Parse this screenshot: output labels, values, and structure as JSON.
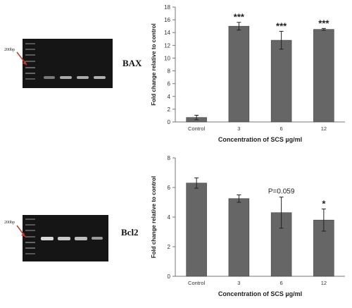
{
  "figure_panels": [
    {
      "gene": "BAX",
      "marker_label": "200bp",
      "gel_lanes": 5
    },
    {
      "gene": "Bcl2",
      "marker_label": "200bp",
      "gel_lanes": 5
    }
  ],
  "colors": {
    "bar": "#666666",
    "bar_edge": "#444444",
    "axis": "#777777",
    "gel_bg": "#151515",
    "band": "#d8d8d8",
    "arrow": "#c0392b"
  },
  "chart_data": [
    {
      "type": "bar",
      "title": "",
      "categories": [
        "Control",
        "3",
        "6",
        "12"
      ],
      "values": [
        0.7,
        15.0,
        12.8,
        14.5
      ],
      "errors": [
        0.35,
        0.6,
        1.4,
        0.15
      ],
      "annotations": [
        "",
        "***",
        "***",
        "***"
      ],
      "xlabel": "Concentration of SCS µg/ml",
      "ylabel": "Fold change relative to control",
      "ylim": [
        0,
        18
      ],
      "yticks": [
        0,
        2,
        4,
        6,
        8,
        10,
        12,
        14,
        16,
        18
      ],
      "grid": false
    },
    {
      "type": "bar",
      "title": "",
      "categories": [
        "Control",
        "3",
        "6",
        "12"
      ],
      "values": [
        6.3,
        5.25,
        4.3,
        3.8
      ],
      "errors": [
        0.35,
        0.25,
        1.05,
        0.75
      ],
      "annotations": [
        "",
        "",
        "P=0.059",
        "*"
      ],
      "xlabel": "Concentration of SCS µg/ml",
      "ylabel": "Fold change relative to control",
      "ylim": [
        0,
        8
      ],
      "yticks": [
        0,
        2,
        4,
        6,
        8
      ],
      "grid": false
    }
  ]
}
